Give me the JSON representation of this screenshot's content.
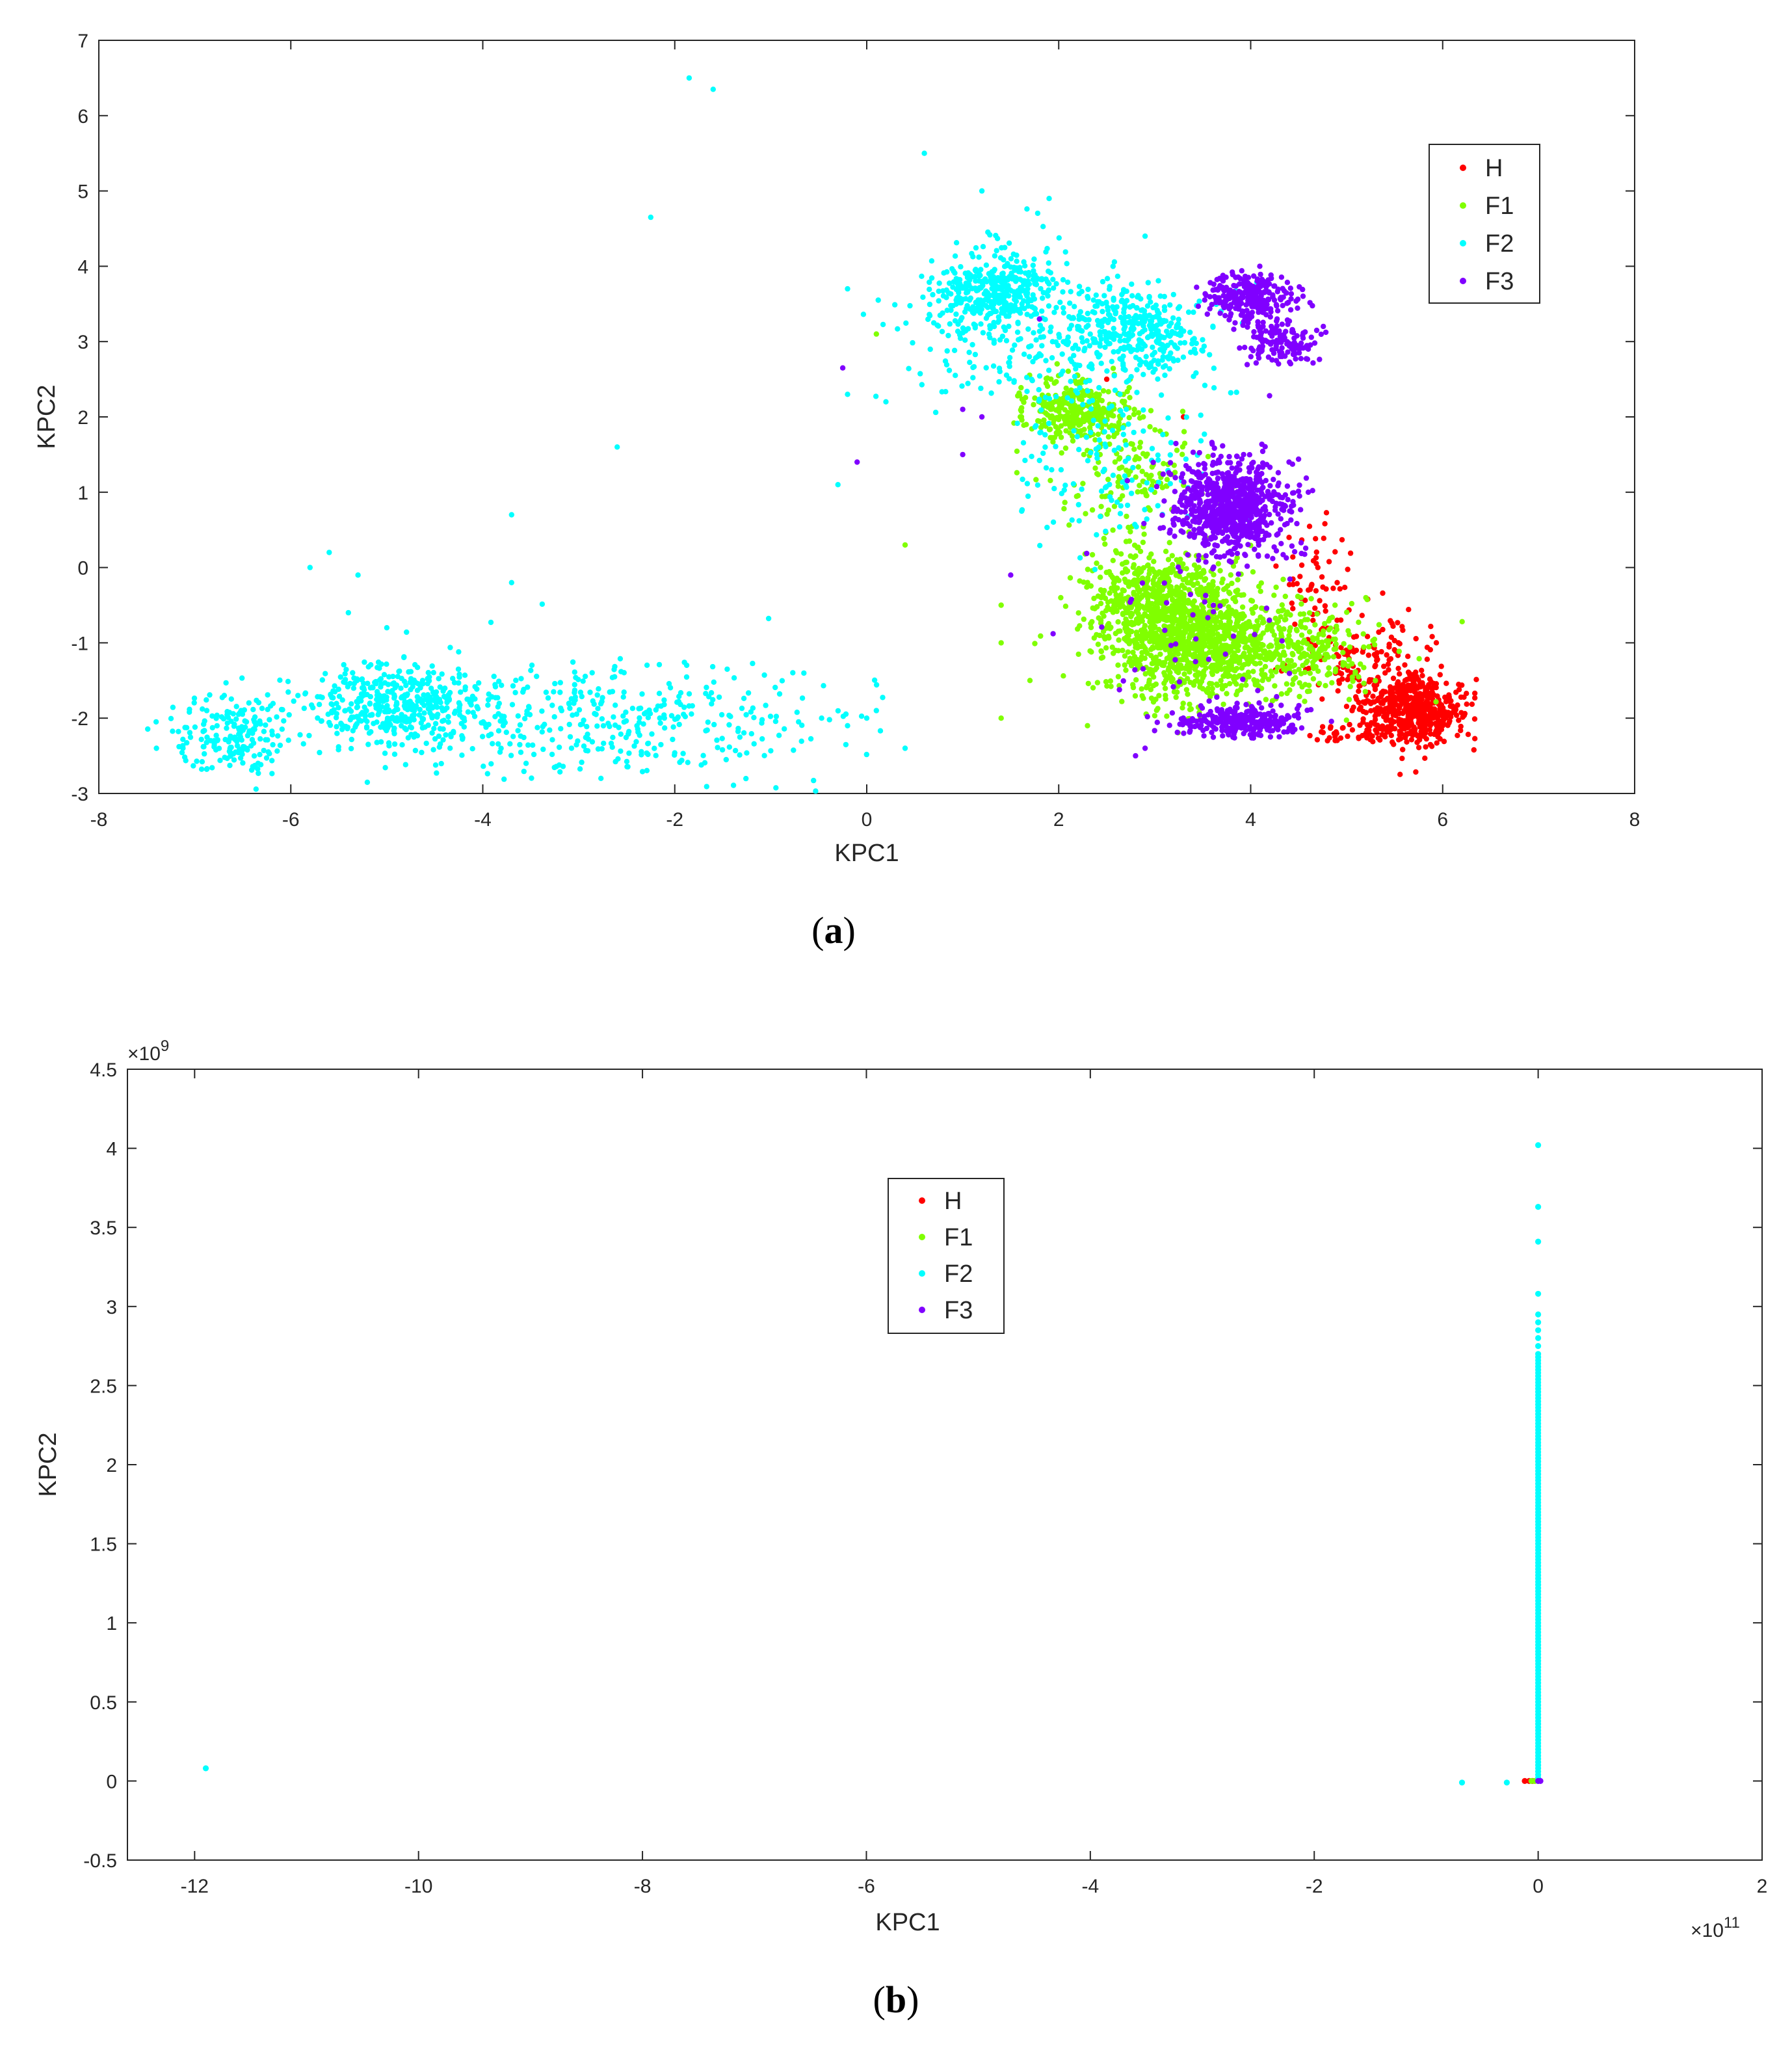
{
  "colors": {
    "H": "#ff0000",
    "F1": "#80ff00",
    "F2": "#00ffff",
    "F3": "#8000ff",
    "axis": "#262626"
  },
  "chart_data": [
    {
      "id": "a",
      "caption_label": "a",
      "type": "scatter",
      "xlabel": "KPC1",
      "ylabel": "KPC2",
      "xlim": [
        -8,
        8
      ],
      "ylim": [
        -3,
        7
      ],
      "xticks": [
        -8,
        -6,
        -4,
        -2,
        0,
        2,
        4,
        6,
        8
      ],
      "xtick_labels": [
        "-8",
        "-6",
        "-4",
        "-2",
        "0",
        "2",
        "4",
        "6",
        "8"
      ],
      "yticks": [
        -3,
        -2,
        -1,
        0,
        1,
        2,
        3,
        4,
        5,
        6,
        7
      ],
      "ytick_labels": [
        "-3",
        "-2",
        "-1",
        "0",
        "1",
        "2",
        "3",
        "4",
        "5",
        "6",
        "7"
      ],
      "x_exponent": "",
      "y_exponent": "",
      "legend": {
        "position": "top-right",
        "entries": [
          "H",
          "F1",
          "F2",
          "F3"
        ]
      },
      "grid": false,
      "series": [
        {
          "name": "H",
          "color_key": "H",
          "points": [
            [
              5.9,
              -2.0
            ],
            [
              5.7,
              -1.8
            ],
            [
              6.0,
              -2.1
            ],
            [
              5.5,
              -1.6
            ],
            [
              5.3,
              -1.3
            ],
            [
              5.1,
              -1.1
            ],
            [
              4.9,
              -0.7
            ],
            [
              4.6,
              -0.3
            ],
            [
              4.4,
              0.4
            ],
            [
              4.7,
              0.0
            ],
            [
              5.6,
              -1.9
            ],
            [
              5.8,
              -2.2
            ],
            [
              5.2,
              -2.2
            ],
            [
              4.8,
              -2.3
            ],
            [
              3.3,
              2.0
            ],
            [
              2.5,
              2.5
            ],
            [
              5.4,
              -1.4
            ],
            [
              5.8,
              -1.9
            ]
          ],
          "clusters": [
            {
              "cx": 5.7,
              "cy": -1.9,
              "sx": 0.25,
              "sy": 0.22,
              "n": 500
            },
            {
              "cx": 5.2,
              "cy": -1.2,
              "sx": 0.35,
              "sy": 0.35,
              "n": 140
            },
            {
              "cx": 4.7,
              "cy": -0.2,
              "sx": 0.2,
              "sy": 0.35,
              "n": 50
            },
            {
              "cx": 5.1,
              "cy": -2.2,
              "sx": 0.3,
              "sy": 0.08,
              "n": 40
            }
          ]
        },
        {
          "name": "F1",
          "color_key": "F1",
          "points": [
            [
              0.4,
              0.3
            ],
            [
              0.1,
              3.1
            ],
            [
              1.4,
              -0.5
            ],
            [
              1.4,
              -1.0
            ],
            [
              1.7,
              -1.5
            ],
            [
              1.4,
              -2.0
            ],
            [
              2.3,
              -2.1
            ],
            [
              3.7,
              -0.2
            ],
            [
              5.2,
              -0.4
            ],
            [
              1.6,
              2.0
            ]
          ],
          "clusters": [
            {
              "cx": 3.4,
              "cy": -1.0,
              "sx": 0.45,
              "sy": 0.38,
              "n": 1000
            },
            {
              "cx": 3.0,
              "cy": -0.4,
              "sx": 0.35,
              "sy": 0.3,
              "n": 500
            },
            {
              "cx": 4.5,
              "cy": -1.1,
              "sx": 0.45,
              "sy": 0.3,
              "n": 300
            },
            {
              "cx": 2.2,
              "cy": 2.1,
              "sx": 0.28,
              "sy": 0.2,
              "n": 330
            },
            {
              "cx": 2.7,
              "cy": 1.2,
              "sx": 0.4,
              "sy": 0.35,
              "n": 150
            }
          ]
        },
        {
          "name": "F2",
          "color_key": "F2",
          "points": [
            [
              -1.85,
              6.5
            ],
            [
              -1.6,
              6.35
            ],
            [
              -2.25,
              4.65
            ],
            [
              -2.6,
              1.6
            ],
            [
              -3.7,
              0.7
            ],
            [
              -3.7,
              -0.2
            ],
            [
              -5.6,
              0.2
            ],
            [
              -5.3,
              -0.1
            ],
            [
              -5.8,
              0.0
            ],
            [
              -5.0,
              -0.8
            ],
            [
              -5.4,
              -0.6
            ],
            [
              -7.4,
              -2.4
            ],
            [
              -0.2,
              3.7
            ],
            [
              -0.3,
              1.1
            ],
            [
              -0.2,
              2.3
            ],
            [
              0.6,
              5.5
            ],
            [
              0.2,
              2.2
            ],
            [
              1.9,
              4.9
            ],
            [
              1.2,
              5.0
            ],
            [
              2.9,
              4.4
            ],
            [
              0.0,
              -2.0
            ],
            [
              0.4,
              -2.4
            ],
            [
              0.1,
              -1.9
            ],
            [
              -0.2,
              -2.1
            ]
          ],
          "clusters": [
            {
              "cx": 1.3,
              "cy": 3.7,
              "sx": 0.3,
              "sy": 0.22,
              "n": 320
            },
            {
              "cx": 1.5,
              "cy": 3.3,
              "sx": 0.6,
              "sy": 0.5,
              "n": 200
            },
            {
              "cx": 2.7,
              "cy": 3.3,
              "sx": 0.3,
              "sy": 0.2,
              "n": 150
            },
            {
              "cx": 3.0,
              "cy": 3.0,
              "sx": 0.28,
              "sy": 0.2,
              "n": 130
            },
            {
              "cx": 2.3,
              "cy": 2.8,
              "sx": 0.7,
              "sy": 0.5,
              "n": 160
            },
            {
              "cx": 2.6,
              "cy": 1.3,
              "sx": 0.5,
              "sy": 0.5,
              "n": 120
            },
            {
              "cx": -6.6,
              "cy": -2.2,
              "sx": 0.35,
              "sy": 0.28,
              "n": 200
            },
            {
              "cx": -5.1,
              "cy": -1.7,
              "sx": 0.35,
              "sy": 0.22,
              "n": 160
            },
            {
              "cx": -4.7,
              "cy": -1.9,
              "sx": 0.45,
              "sy": 0.28,
              "n": 260
            },
            {
              "cx": -2.7,
              "cy": -2.0,
              "sx": 1.2,
              "sy": 0.4,
              "n": 380
            }
          ]
        },
        {
          "name": "F3",
          "color_key": "F3",
          "points": [
            [
              -0.25,
              2.65
            ],
            [
              -0.1,
              1.4
            ],
            [
              1.0,
              2.1
            ],
            [
              1.2,
              2.0
            ],
            [
              1.5,
              -0.1
            ],
            [
              1.0,
              1.5
            ],
            [
              1.8,
              3.3
            ],
            [
              4.4,
              1.4
            ],
            [
              4.6,
              1.0
            ],
            [
              2.9,
              -2.4
            ],
            [
              2.8,
              -2.5
            ],
            [
              4.6,
              2.9
            ]
          ],
          "clusters": [
            {
              "cx": 3.8,
              "cy": 0.8,
              "sx": 0.28,
              "sy": 0.3,
              "n": 800
            },
            {
              "cx": 4.0,
              "cy": 3.6,
              "sx": 0.22,
              "sy": 0.15,
              "n": 280
            },
            {
              "cx": 4.3,
              "cy": 3.0,
              "sx": 0.18,
              "sy": 0.15,
              "n": 150
            },
            {
              "cx": 3.9,
              "cy": -2.05,
              "sx": 0.3,
              "sy": 0.1,
              "n": 280
            },
            {
              "cx": 3.4,
              "cy": -0.6,
              "sx": 0.55,
              "sy": 0.7,
              "n": 60
            }
          ]
        }
      ]
    },
    {
      "id": "b",
      "caption_label": "b",
      "type": "scatter",
      "xlabel": "KPC1",
      "ylabel": "KPC2",
      "xlim": [
        -12.6,
        2
      ],
      "ylim": [
        -0.5,
        4.5
      ],
      "xticks": [
        -12,
        -10,
        -8,
        -6,
        -4,
        -2,
        0,
        2
      ],
      "xtick_labels": [
        "-12",
        "-10",
        "-8",
        "-6",
        "-4",
        "-2",
        "0",
        "2"
      ],
      "yticks": [
        -0.5,
        0,
        0.5,
        1,
        1.5,
        2,
        2.5,
        3,
        3.5,
        4,
        4.5
      ],
      "ytick_labels": [
        "-0.5",
        "0",
        "0.5",
        "1",
        "1.5",
        "2",
        "2.5",
        "3",
        "3.5",
        "4",
        "4.5"
      ],
      "x_exponent": "11",
      "y_exponent": "9",
      "legend": {
        "position": "top-center",
        "entries": [
          "H",
          "F1",
          "F2",
          "F3"
        ]
      },
      "grid": false,
      "series": [
        {
          "name": "H",
          "color_key": "H",
          "points": [
            [
              -0.12,
              0.0
            ],
            [
              -0.08,
              0.0
            ],
            [
              -0.05,
              0.0
            ]
          ]
        },
        {
          "name": "F1",
          "color_key": "F1",
          "points": [
            [
              -0.06,
              0.0
            ],
            [
              -0.03,
              0.0
            ]
          ]
        },
        {
          "name": "F2",
          "color_key": "F2",
          "points": [
            [
              -11.9,
              0.08
            ],
            [
              -0.68,
              -0.01
            ],
            [
              -0.28,
              -0.01
            ],
            [
              0.0,
              4.02
            ],
            [
              0.0,
              3.63
            ],
            [
              0.0,
              3.41
            ],
            [
              0.0,
              3.08
            ],
            [
              0.0,
              2.95
            ],
            [
              0.0,
              2.9
            ],
            [
              0.0,
              2.85
            ],
            [
              0.0,
              2.8
            ],
            [
              0.0,
              2.75
            ]
          ],
          "vertical_band": {
            "x": 0.0,
            "y_from": 0.0,
            "y_to": 2.7,
            "step": 0.02
          }
        },
        {
          "name": "F3",
          "color_key": "F3",
          "points": [
            [
              0.0,
              0.0
            ],
            [
              0.02,
              0.0
            ]
          ]
        }
      ]
    }
  ]
}
